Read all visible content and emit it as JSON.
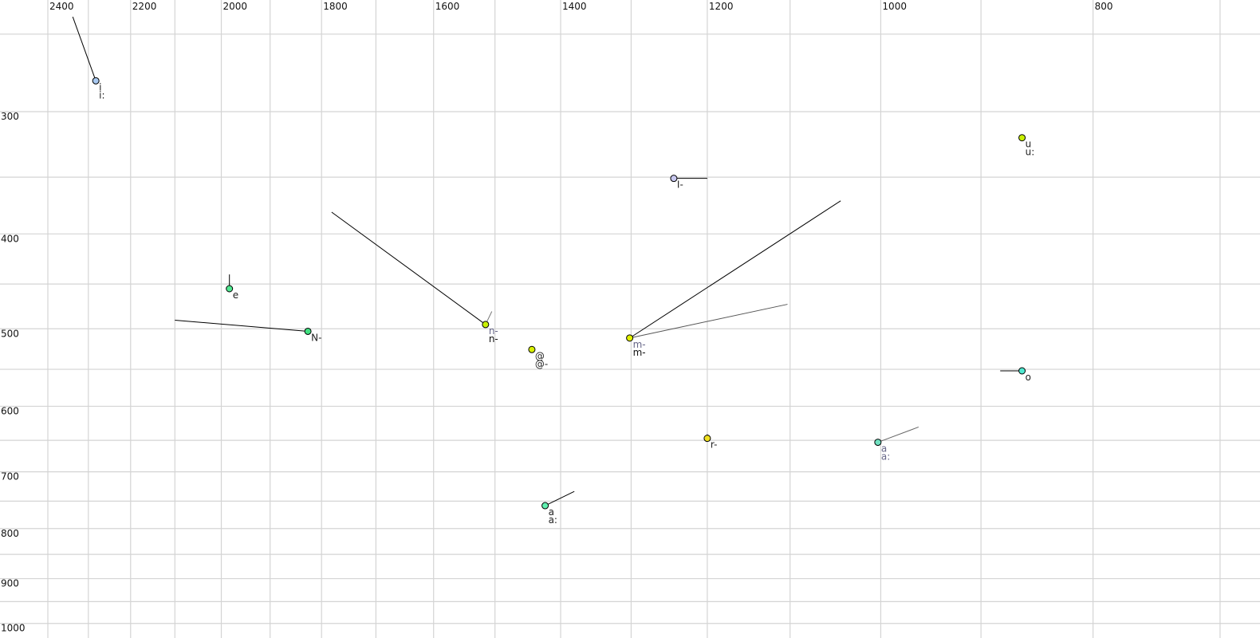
{
  "chart_data": {
    "type": "scatter",
    "title": "",
    "xlabel": "",
    "ylabel": "",
    "x_scale": "log",
    "y_scale": "log",
    "x_reversed": true,
    "xlim": [
      2500,
      680
    ],
    "ylim": [
      230,
      1020
    ],
    "grid": true,
    "x_gridlines": [
      2400,
      2300,
      2200,
      2100,
      2000,
      1900,
      1800,
      1700,
      1600,
      1500,
      1400,
      1300,
      1200,
      1100,
      1000,
      900,
      800,
      700
    ],
    "y_gridlines": [
      250,
      300,
      350,
      400,
      450,
      500,
      550,
      600,
      650,
      700,
      750,
      800,
      850,
      900,
      950,
      1000
    ],
    "x_tick_labels": [
      "2400",
      "2200",
      "2000",
      "1800",
      "1600",
      "1400",
      "1200",
      "1000",
      "800"
    ],
    "y_tick_labels": [
      "300",
      "400",
      "500",
      "600",
      "700",
      "800",
      "900",
      "1000"
    ],
    "points": [
      {
        "f2": 2282,
        "f1": 279,
        "color": "#a8c8f0",
        "labels": [
          "i",
          "i:"
        ],
        "label_colors": [
          "#222222",
          "#222222"
        ],
        "trails": [
          {
            "f2": 2338,
            "f1": 240,
            "color": "#000000"
          }
        ]
      },
      {
        "f2": 1983,
        "f1": 455,
        "color": "#50e890",
        "labels": [
          "e"
        ],
        "label_colors": [
          "#222222"
        ],
        "trails": [
          {
            "f2": 1983,
            "f1": 440,
            "color": "#000000"
          }
        ]
      },
      {
        "f2": 1826,
        "f1": 503,
        "color": "#40e080",
        "labels": [
          "N-"
        ],
        "label_colors": [
          "#222222"
        ],
        "trails": [
          {
            "f2": 2100,
            "f1": 490,
            "color": "#000000"
          }
        ]
      },
      {
        "f2": 1515,
        "f1": 495,
        "color": "#c8f000",
        "labels": [
          "n-",
          "n-"
        ],
        "label_colors": [
          "#666688",
          "#111111"
        ],
        "trails": [
          {
            "f2": 1781,
            "f1": 380,
            "color": "#000000"
          },
          {
            "f2": 1505,
            "f1": 480,
            "color": "#777777"
          }
        ]
      },
      {
        "f2": 1443,
        "f1": 525,
        "color": "#d8f000",
        "labels": [
          "@",
          "@-"
        ],
        "label_colors": [
          "#222222",
          "#222222"
        ],
        "trails": []
      },
      {
        "f2": 1302,
        "f1": 511,
        "color": "#e0f000",
        "labels": [
          "m-",
          "m-"
        ],
        "label_colors": [
          "#666688",
          "#111111"
        ],
        "trails": [
          {
            "f2": 1043,
            "f1": 370,
            "color": "#000000"
          },
          {
            "f2": 1103,
            "f1": 472,
            "color": "#555555"
          }
        ]
      },
      {
        "f2": 1243,
        "f1": 351,
        "color": "#c8c8f0",
        "labels": [
          "I-"
        ],
        "label_colors": [
          "#222222"
        ],
        "trails": [
          {
            "f2": 1200,
            "f1": 351,
            "color": "#000000"
          }
        ]
      },
      {
        "f2": 1200,
        "f1": 647,
        "color": "#f0e020",
        "labels": [
          "r-"
        ],
        "label_colors": [
          "#222222"
        ],
        "trails": [
          {
            "f2": 1200,
            "f1": 641,
            "color": "#000000"
          }
        ]
      },
      {
        "f2": 1423,
        "f1": 758,
        "color": "#60f0b0",
        "labels": [
          "a",
          "a:"
        ],
        "label_colors": [
          "#222222",
          "#222222"
        ],
        "trails": [
          {
            "f2": 1380,
            "f1": 733,
            "color": "#000000"
          }
        ]
      },
      {
        "f2": 1003,
        "f1": 653,
        "color": "#70e0c0",
        "labels": [
          "a",
          "a:"
        ],
        "label_colors": [
          "#666688",
          "#666688"
        ],
        "trails": [
          {
            "f2": 961,
            "f1": 630,
            "color": "#666666"
          }
        ]
      },
      {
        "f2": 862,
        "f1": 319,
        "color": "#c8f000",
        "labels": [
          "u",
          "u:"
        ],
        "label_colors": [
          "#222222",
          "#222222"
        ],
        "trails": []
      },
      {
        "f2": 862,
        "f1": 552,
        "color": "#50e8d0",
        "labels": [
          "o"
        ],
        "label_colors": [
          "#222222"
        ],
        "trails": [
          {
            "f2": 882,
            "f1": 552,
            "color": "#000000"
          }
        ]
      }
    ]
  }
}
